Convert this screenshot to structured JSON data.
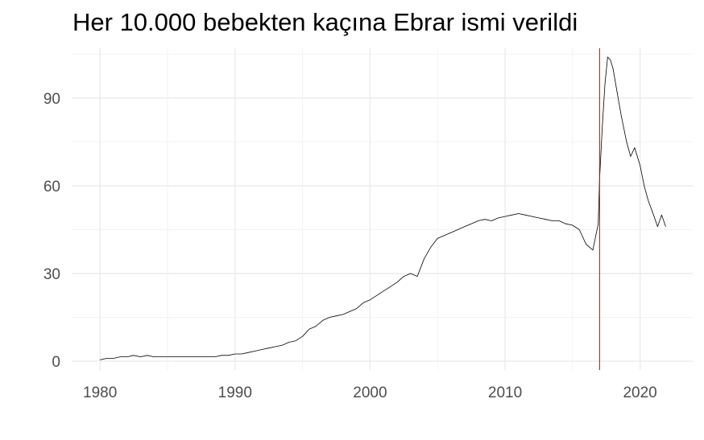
{
  "chart_data": {
    "type": "line",
    "title": "Her 10.000 bebekten kaçına Ebrar ismi verildi",
    "xlabel": "",
    "ylabel": "",
    "xlim": [
      1977.9,
      2023.9
    ],
    "ylim": [
      -3.0,
      107.0
    ],
    "x_ticks": [
      1980,
      1990,
      2000,
      2010,
      2020
    ],
    "x_tick_labels": [
      "1980",
      "1990",
      "2000",
      "2010",
      "2020"
    ],
    "y_ticks": [
      0,
      30,
      60,
      90
    ],
    "y_tick_labels": [
      "0",
      "30",
      "60",
      "90"
    ],
    "grid": true,
    "legend": "none",
    "line_color": "#000000",
    "reference_line": {
      "x": 2017.0,
      "color": "#cc0000"
    },
    "series": [
      {
        "x": [
          1980.0,
          1980.5,
          1981.0,
          1981.5,
          1982.0,
          1982.5,
          1983.0,
          1983.5,
          1984.0,
          1984.5,
          1985.0,
          1985.5,
          1986.0,
          1986.5,
          1987.0,
          1987.5,
          1988.0,
          1988.5,
          1989.0,
          1989.5,
          1990.0,
          1990.5,
          1991.0,
          1991.5,
          1992.0,
          1992.5,
          1993.0,
          1993.5,
          1994.0,
          1994.5,
          1995.0,
          1995.5,
          1996.0,
          1996.5,
          1997.0,
          1997.5,
          1998.0,
          1998.5,
          1999.0,
          1999.5,
          2000.0,
          2000.5,
          2001.0,
          2001.5,
          2002.0,
          2002.5,
          2003.0,
          2003.5,
          2004.0,
          2004.5,
          2005.0,
          2005.5,
          2006.0,
          2006.5,
          2007.0,
          2007.5,
          2008.0,
          2008.5,
          2009.0,
          2009.5,
          2010.0,
          2010.5,
          2011.0,
          2011.5,
          2012.0,
          2012.5,
          2013.0,
          2013.5,
          2014.0,
          2014.5,
          2015.0,
          2015.5,
          2016.0,
          2016.5,
          2016.9,
          2017.0,
          2017.2,
          2017.4,
          2017.6,
          2017.8,
          2018.0,
          2018.3,
          2018.6,
          2019.0,
          2019.3,
          2019.6,
          2020.0,
          2020.3,
          2020.6,
          2021.0,
          2021.3,
          2021.6,
          2021.9
        ],
        "y": [
          0.5,
          1.0,
          1.0,
          1.5,
          1.5,
          2.0,
          1.5,
          2.0,
          1.5,
          1.5,
          1.5,
          1.5,
          1.5,
          1.5,
          1.5,
          1.5,
          1.5,
          1.5,
          2.0,
          2.0,
          2.5,
          2.5,
          3.0,
          3.5,
          4.0,
          4.5,
          5.0,
          5.5,
          6.5,
          7.0,
          8.5,
          11.0,
          12.0,
          14.0,
          15.0,
          15.5,
          16.0,
          17.0,
          18.0,
          20.0,
          21.0,
          22.5,
          24.0,
          25.5,
          27.0,
          29.0,
          30.0,
          29.0,
          35.0,
          39.0,
          42.0,
          43.0,
          44.0,
          45.0,
          46.0,
          47.0,
          48.0,
          48.5,
          48.0,
          49.0,
          49.5,
          50.0,
          50.5,
          50.0,
          49.5,
          49.0,
          48.5,
          48.0,
          48.0,
          47.0,
          46.5,
          45.0,
          40.0,
          38.0,
          47.0,
          62.0,
          80.0,
          95.0,
          104.0,
          103.0,
          100.0,
          92.0,
          84.0,
          75.0,
          70.0,
          73.0,
          67.0,
          60.0,
          55.0,
          50.0,
          46.0,
          50.0,
          46.0
        ]
      }
    ]
  }
}
